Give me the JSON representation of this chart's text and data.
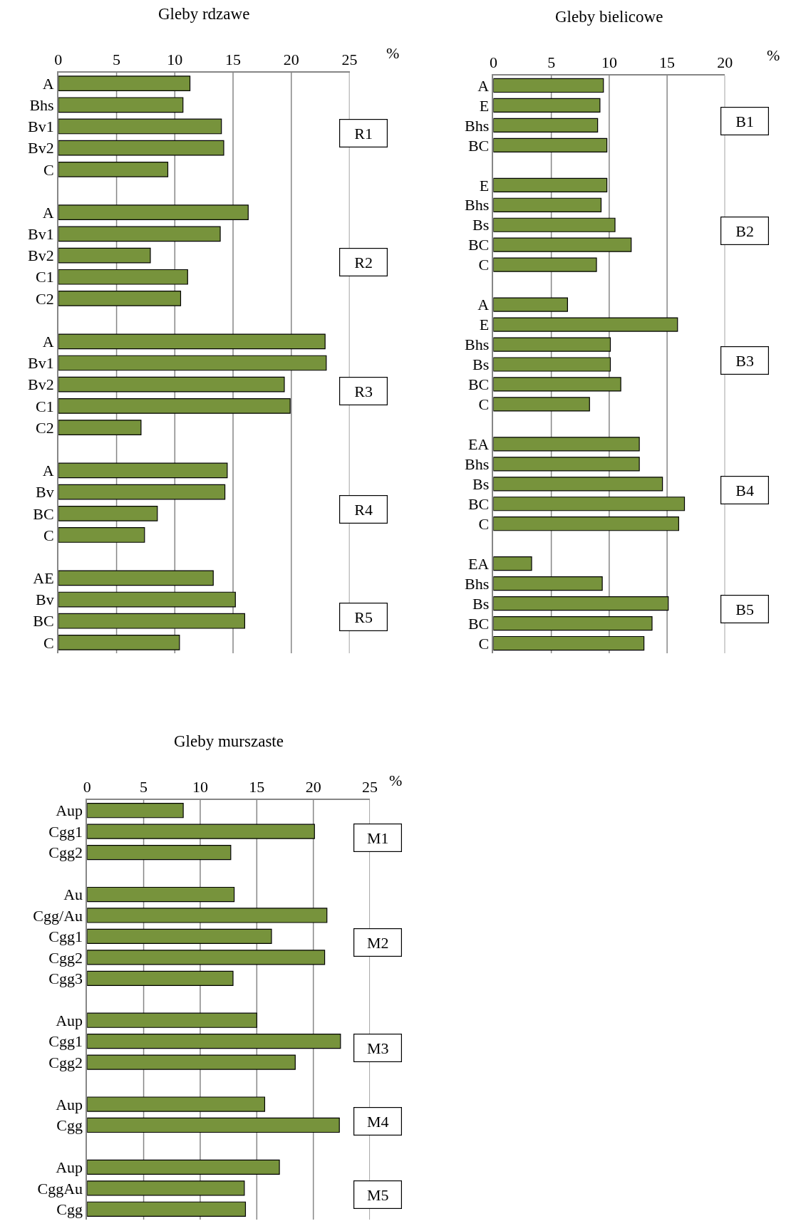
{
  "chart_data": [
    {
      "type": "bar",
      "orientation": "horizontal",
      "title": "Gleby rdzawe",
      "xlabel": "%",
      "color": "#77933c",
      "grid": "x",
      "xlim": [
        0,
        25
      ],
      "xticks": [
        0,
        5,
        10,
        15,
        20,
        25
      ],
      "categories": [
        "A",
        "Bhs",
        "Bv1",
        "Bv2",
        "C",
        null,
        "A",
        "Bv1",
        "Bv2",
        "C1",
        "C2",
        null,
        "A",
        "Bv1",
        "Bv2",
        "C1",
        "C2",
        null,
        "A",
        "Bv",
        "BC",
        "C",
        null,
        "AE",
        "Bv",
        "BC",
        "C"
      ],
      "values": [
        11.3,
        10.7,
        14.0,
        14.2,
        9.4,
        null,
        16.3,
        13.9,
        7.9,
        11.1,
        10.5,
        null,
        22.9,
        23.0,
        19.4,
        19.9,
        7.1,
        null,
        14.5,
        14.3,
        8.5,
        7.4,
        null,
        13.3,
        15.2,
        16.0,
        10.4
      ],
      "annotations": [
        "R1",
        "R2",
        "R3",
        "R4",
        "R5"
      ]
    },
    {
      "type": "bar",
      "orientation": "horizontal",
      "title": "Gleby bielicowe",
      "xlabel": "%",
      "color": "#77933c",
      "grid": "x",
      "xlim": [
        0,
        20
      ],
      "xticks": [
        0,
        5,
        10,
        15,
        20
      ],
      "categories": [
        "A",
        "E",
        "Bhs",
        "BC",
        null,
        "E",
        "Bhs",
        "Bs",
        "BC",
        "C",
        null,
        "A",
        "E",
        "Bhs",
        "Bs",
        "BC",
        "C",
        null,
        "EA",
        "Bhs",
        "Bs",
        "BC",
        "C",
        null,
        "EA",
        "Bhs",
        "Bs",
        "BC",
        "C"
      ],
      "values": [
        9.5,
        9.2,
        9.0,
        9.8,
        null,
        9.8,
        9.3,
        10.5,
        11.9,
        8.9,
        null,
        6.4,
        15.9,
        10.1,
        10.1,
        11.0,
        8.3,
        null,
        12.6,
        12.6,
        14.6,
        16.5,
        16.0,
        null,
        3.3,
        9.4,
        15.1,
        13.7,
        13.0
      ],
      "annotations": [
        "B1",
        "B2",
        "B3",
        "B4",
        "B5"
      ]
    },
    {
      "type": "bar",
      "orientation": "horizontal",
      "title": "Gleby murszaste",
      "xlabel": "%",
      "color": "#77933c",
      "grid": "x",
      "xlim": [
        0,
        25
      ],
      "xticks": [
        0,
        5,
        10,
        15,
        20,
        25
      ],
      "categories": [
        "Aup",
        "Cgg1",
        "Cgg2",
        null,
        "Au",
        "Cgg/Au",
        "Cgg1",
        "Cgg2",
        "Cgg3",
        null,
        "Aup",
        "Cgg1",
        "Cgg2",
        null,
        "Aup",
        "Cgg",
        null,
        "Aup",
        "CggAu",
        "Cgg"
      ],
      "values": [
        8.5,
        20.1,
        12.7,
        null,
        13.0,
        21.2,
        16.3,
        21.0,
        12.9,
        null,
        15.0,
        22.4,
        18.4,
        null,
        15.7,
        22.3,
        null,
        17.0,
        13.9,
        14.0
      ],
      "annotations": [
        "M1",
        "M2",
        "M3",
        "M4",
        "M5"
      ]
    }
  ]
}
